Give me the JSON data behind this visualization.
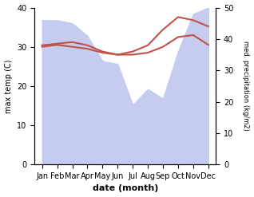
{
  "months": [
    "Jan",
    "Feb",
    "Mar",
    "Apr",
    "May",
    "Jun",
    "Jul",
    "Aug",
    "Sep",
    "Oct",
    "Nov",
    "Dec"
  ],
  "temp": [
    30.0,
    30.5,
    30.0,
    29.5,
    28.5,
    28.0,
    28.0,
    28.5,
    30.0,
    32.5,
    33.0,
    30.5
  ],
  "precip": [
    46,
    46,
    45,
    41,
    33,
    32,
    19,
    24,
    21,
    36,
    48,
    50
  ],
  "precip_line": [
    38,
    38.5,
    39,
    38,
    36,
    35,
    36,
    38,
    43,
    47,
    46,
    44
  ],
  "xlabel": "date (month)",
  "ylabel_left": "max temp (C)",
  "ylabel_right": "med. precipitation (kg/m2)",
  "ylim_left": [
    0,
    40
  ],
  "ylim_right": [
    0,
    50
  ],
  "temp_color": "#c0524a",
  "precip_fill_color": "#c5ccf0",
  "fig_width": 3.18,
  "fig_height": 2.47,
  "dpi": 100
}
